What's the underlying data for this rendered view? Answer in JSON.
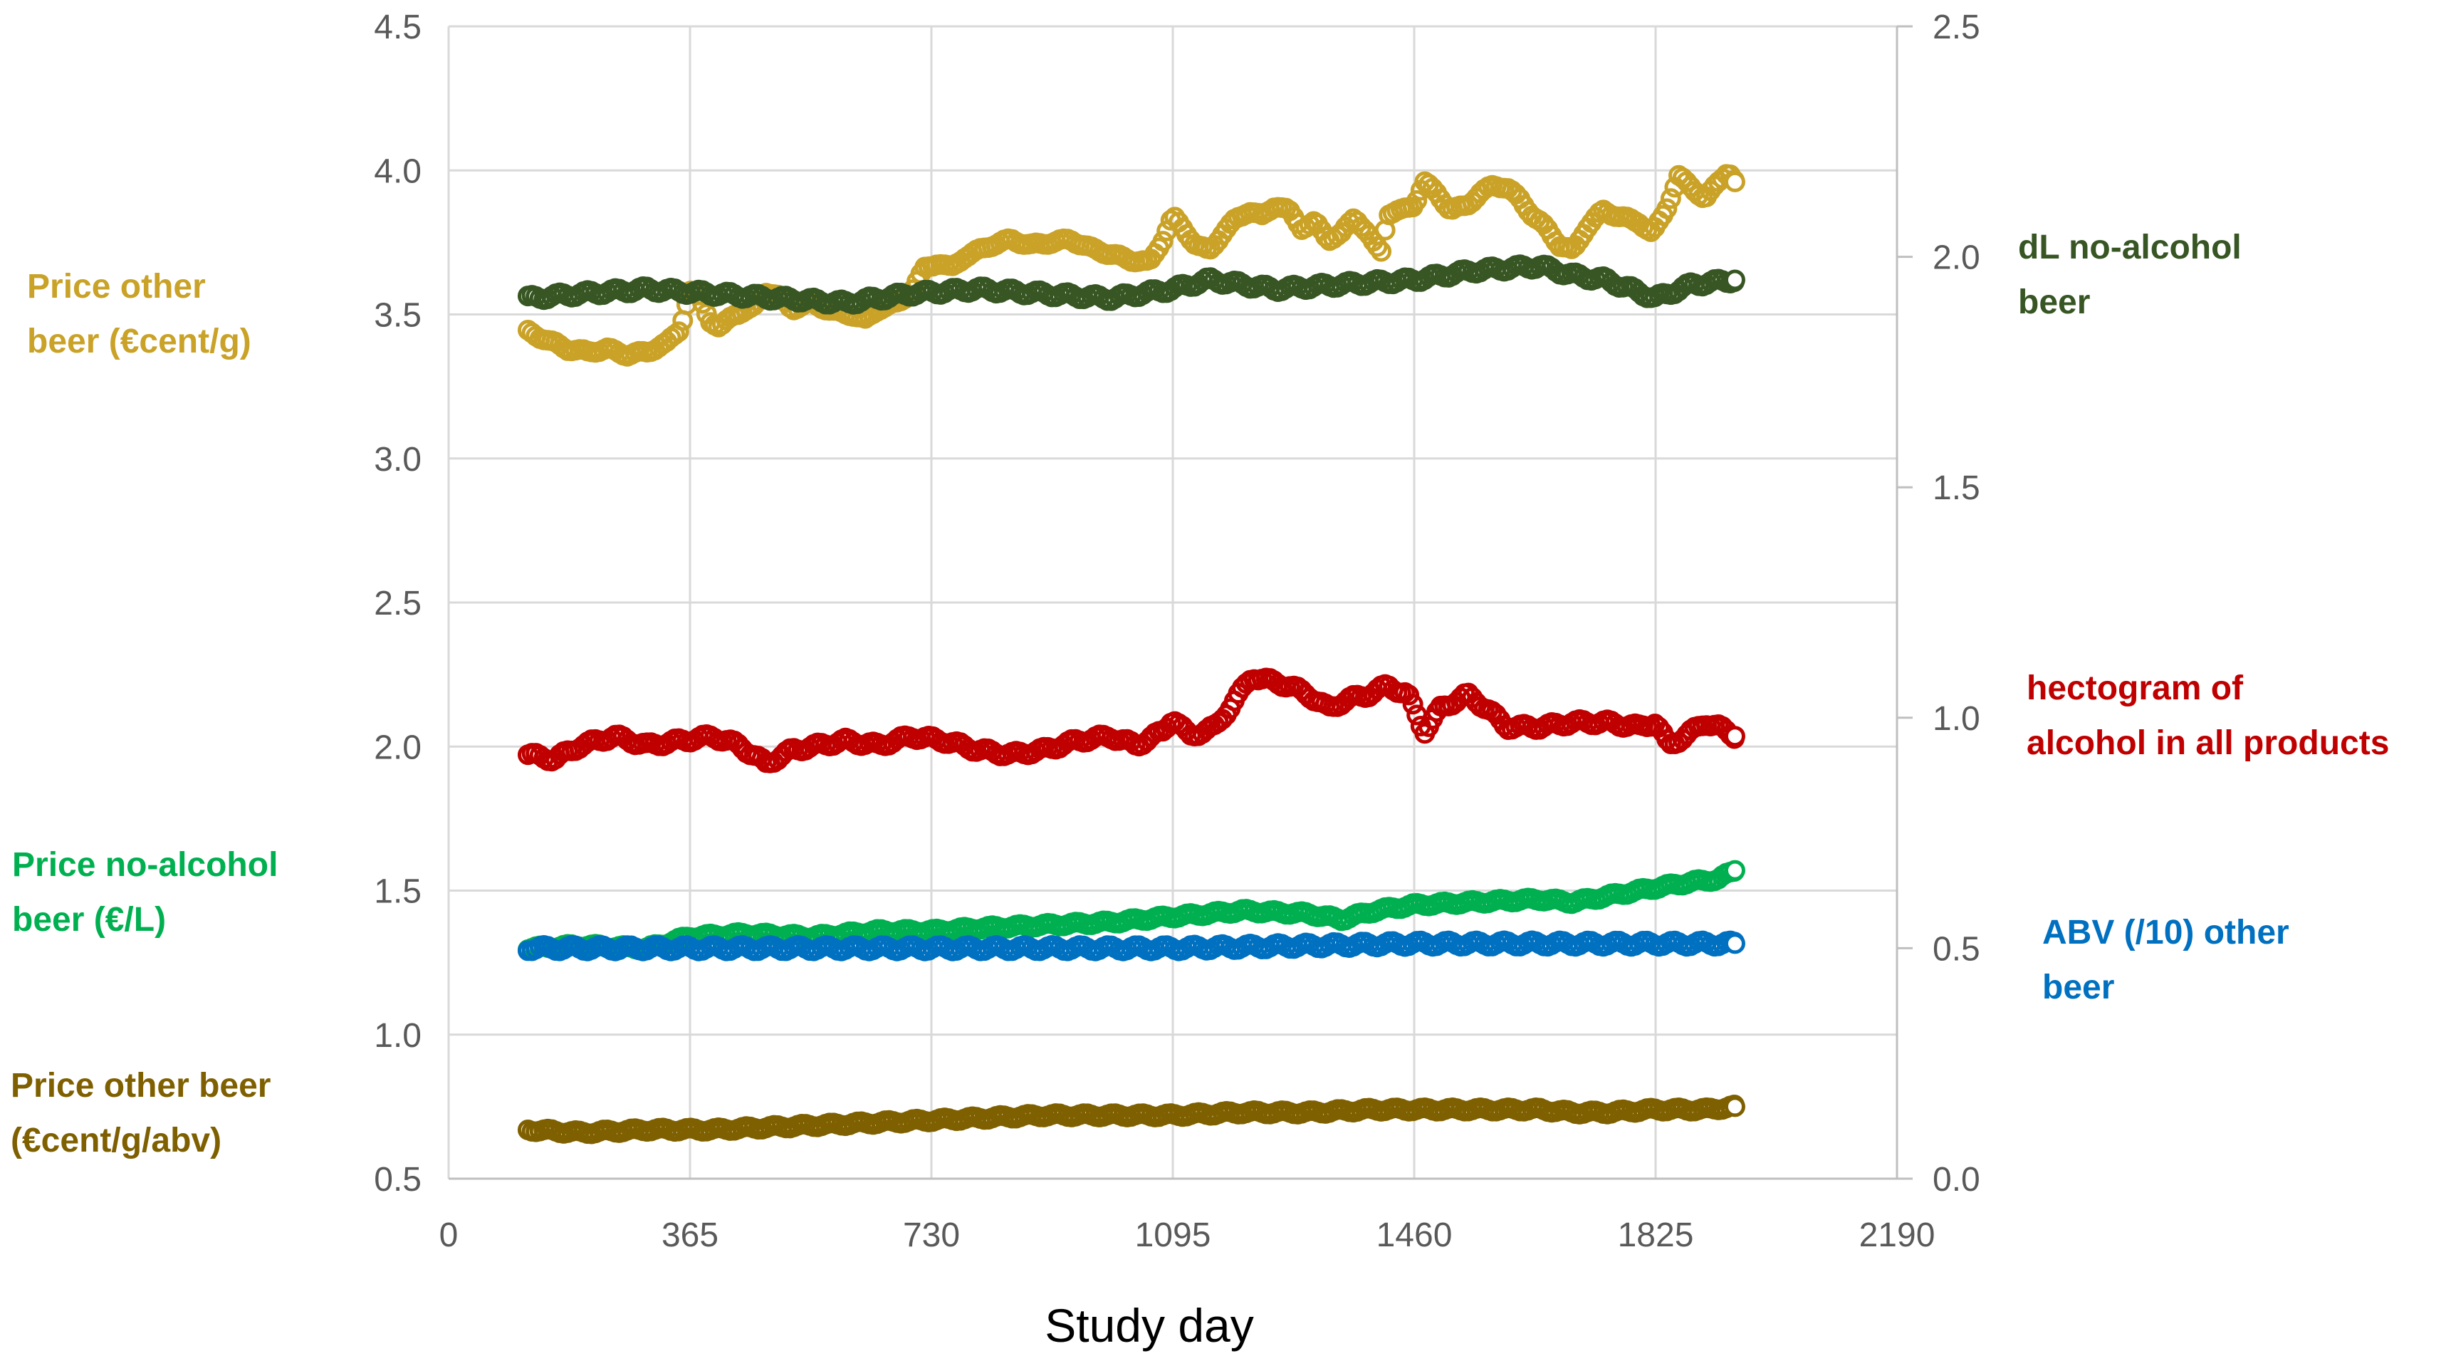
{
  "chart_data": {
    "type": "scatter",
    "title": "",
    "xlabel": "Study day",
    "ylabel_left": "",
    "ylabel_right": "",
    "x_ticks": [
      0,
      365,
      730,
      1095,
      1460,
      1825,
      2190
    ],
    "xlim": [
      0,
      2190
    ],
    "y_left_ticks": [
      "0.5",
      "1.0",
      "1.5",
      "2.0",
      "2.5",
      "3.0",
      "3.5",
      "4.0",
      "4.5"
    ],
    "ylim_left": [
      0.5,
      4.5
    ],
    "y_right_ticks": [
      "0.0",
      "0.5",
      "1.0",
      "1.5",
      "2.0",
      "2.5"
    ],
    "ylim_right": [
      0.0,
      2.5
    ],
    "grid": true,
    "series": [
      {
        "name": "Price other beer (€cent/g)",
        "label_lines": [
          "Price other",
          "beer (€cent/g)"
        ],
        "axis": "left",
        "color": "#C9A227",
        "points": [
          [
            120,
            3.44
          ],
          [
            150,
            3.41
          ],
          [
            180,
            3.38
          ],
          [
            210,
            3.37
          ],
          [
            240,
            3.38
          ],
          [
            270,
            3.36
          ],
          [
            300,
            3.37
          ],
          [
            330,
            3.4
          ],
          [
            350,
            3.45
          ],
          [
            365,
            3.58
          ],
          [
            380,
            3.56
          ],
          [
            395,
            3.48
          ],
          [
            410,
            3.45
          ],
          [
            430,
            3.5
          ],
          [
            460,
            3.52
          ],
          [
            480,
            3.58
          ],
          [
            500,
            3.56
          ],
          [
            520,
            3.52
          ],
          [
            550,
            3.54
          ],
          [
            580,
            3.51
          ],
          [
            610,
            3.5
          ],
          [
            630,
            3.48
          ],
          [
            650,
            3.52
          ],
          [
            680,
            3.54
          ],
          [
            700,
            3.58
          ],
          [
            720,
            3.66
          ],
          [
            740,
            3.68
          ],
          [
            760,
            3.66
          ],
          [
            780,
            3.7
          ],
          [
            800,
            3.72
          ],
          [
            820,
            3.74
          ],
          [
            850,
            3.76
          ],
          [
            880,
            3.74
          ],
          [
            910,
            3.75
          ],
          [
            940,
            3.76
          ],
          [
            970,
            3.73
          ],
          [
            1000,
            3.71
          ],
          [
            1030,
            3.69
          ],
          [
            1060,
            3.68
          ],
          [
            1080,
            3.76
          ],
          [
            1095,
            3.84
          ],
          [
            1110,
            3.8
          ],
          [
            1130,
            3.74
          ],
          [
            1150,
            3.72
          ],
          [
            1170,
            3.78
          ],
          [
            1190,
            3.83
          ],
          [
            1210,
            3.86
          ],
          [
            1230,
            3.84
          ],
          [
            1250,
            3.88
          ],
          [
            1270,
            3.86
          ],
          [
            1290,
            3.8
          ],
          [
            1310,
            3.82
          ],
          [
            1330,
            3.76
          ],
          [
            1350,
            3.78
          ],
          [
            1370,
            3.84
          ],
          [
            1390,
            3.78
          ],
          [
            1400,
            3.74
          ],
          [
            1410,
            3.72
          ],
          [
            1420,
            3.85
          ],
          [
            1440,
            3.86
          ],
          [
            1460,
            3.88
          ],
          [
            1475,
            3.96
          ],
          [
            1495,
            3.92
          ],
          [
            1515,
            3.86
          ],
          [
            1540,
            3.88
          ],
          [
            1560,
            3.92
          ],
          [
            1580,
            3.95
          ],
          [
            1600,
            3.94
          ],
          [
            1620,
            3.9
          ],
          [
            1640,
            3.84
          ],
          [
            1660,
            3.8
          ],
          [
            1680,
            3.74
          ],
          [
            1700,
            3.72
          ],
          [
            1720,
            3.8
          ],
          [
            1745,
            3.86
          ],
          [
            1770,
            3.84
          ],
          [
            1800,
            3.82
          ],
          [
            1820,
            3.78
          ],
          [
            1840,
            3.86
          ],
          [
            1860,
            3.98
          ],
          [
            1880,
            3.94
          ],
          [
            1900,
            3.9
          ],
          [
            1920,
            3.96
          ],
          [
            1935,
            4.0
          ],
          [
            1945,
            3.96
          ]
        ]
      },
      {
        "name": "dL no-alcohol beer",
        "label_lines": [
          "dL no-alcohol",
          "beer"
        ],
        "axis": "right",
        "color": "#375623",
        "points": [
          [
            120,
            1.91
          ],
          [
            200,
            1.92
          ],
          [
            300,
            1.93
          ],
          [
            400,
            1.92
          ],
          [
            500,
            1.91
          ],
          [
            600,
            1.9
          ],
          [
            700,
            1.92
          ],
          [
            800,
            1.93
          ],
          [
            900,
            1.92
          ],
          [
            1000,
            1.91
          ],
          [
            1095,
            1.93
          ],
          [
            1150,
            1.95
          ],
          [
            1250,
            1.93
          ],
          [
            1350,
            1.94
          ],
          [
            1460,
            1.95
          ],
          [
            1550,
            1.97
          ],
          [
            1650,
            1.98
          ],
          [
            1700,
            1.96
          ],
          [
            1750,
            1.95
          ],
          [
            1825,
            1.91
          ],
          [
            1880,
            1.94
          ],
          [
            1945,
            1.95
          ]
        ]
      },
      {
        "name": "hectogram of alcohol in all products",
        "label_lines": [
          "hectogram of",
          "alcohol in all products"
        ],
        "axis": "right",
        "color": "#C00000",
        "points": [
          [
            120,
            0.92
          ],
          [
            160,
            0.91
          ],
          [
            200,
            0.94
          ],
          [
            250,
            0.96
          ],
          [
            300,
            0.94
          ],
          [
            350,
            0.95
          ],
          [
            400,
            0.96
          ],
          [
            440,
            0.94
          ],
          [
            480,
            0.9
          ],
          [
            520,
            0.93
          ],
          [
            560,
            0.94
          ],
          [
            600,
            0.95
          ],
          [
            650,
            0.94
          ],
          [
            700,
            0.96
          ],
          [
            750,
            0.95
          ],
          [
            800,
            0.93
          ],
          [
            850,
            0.92
          ],
          [
            900,
            0.93
          ],
          [
            950,
            0.95
          ],
          [
            1000,
            0.96
          ],
          [
            1040,
            0.94
          ],
          [
            1080,
            0.97
          ],
          [
            1095,
            1.0
          ],
          [
            1120,
            0.96
          ],
          [
            1160,
            0.98
          ],
          [
            1190,
            1.04
          ],
          [
            1215,
            1.09
          ],
          [
            1240,
            1.08
          ],
          [
            1270,
            1.07
          ],
          [
            1300,
            1.05
          ],
          [
            1330,
            1.02
          ],
          [
            1360,
            1.04
          ],
          [
            1390,
            1.05
          ],
          [
            1420,
            1.07
          ],
          [
            1450,
            1.05
          ],
          [
            1475,
            0.97
          ],
          [
            1500,
            1.02
          ],
          [
            1540,
            1.05
          ],
          [
            1570,
            1.02
          ],
          [
            1600,
            0.98
          ],
          [
            1650,
            0.98
          ],
          [
            1700,
            0.99
          ],
          [
            1750,
            0.99
          ],
          [
            1800,
            0.98
          ],
          [
            1825,
            0.99
          ],
          [
            1845,
            0.94
          ],
          [
            1870,
            0.96
          ],
          [
            1900,
            0.99
          ],
          [
            1920,
            0.98
          ],
          [
            1945,
            0.96
          ]
        ]
      },
      {
        "name": "Price no-alcohol beer (€/L)",
        "label_lines": [
          "Price no-alcohol",
          "beer (€/L)"
        ],
        "axis": "left",
        "color": "#00B050",
        "points": [
          [
            120,
            1.3
          ],
          [
            200,
            1.31
          ],
          [
            300,
            1.3
          ],
          [
            365,
            1.34
          ],
          [
            450,
            1.35
          ],
          [
            550,
            1.34
          ],
          [
            650,
            1.36
          ],
          [
            730,
            1.36
          ],
          [
            800,
            1.37
          ],
          [
            900,
            1.38
          ],
          [
            1000,
            1.39
          ],
          [
            1095,
            1.41
          ],
          [
            1150,
            1.42
          ],
          [
            1200,
            1.43
          ],
          [
            1300,
            1.42
          ],
          [
            1350,
            1.4
          ],
          [
            1400,
            1.43
          ],
          [
            1460,
            1.45
          ],
          [
            1550,
            1.46
          ],
          [
            1650,
            1.47
          ],
          [
            1700,
            1.46
          ],
          [
            1750,
            1.48
          ],
          [
            1825,
            1.51
          ],
          [
            1880,
            1.53
          ],
          [
            1920,
            1.54
          ],
          [
            1945,
            1.57
          ]
        ]
      },
      {
        "name": "ABV (/10) other beer",
        "label_lines": [
          "ABV (/10) other",
          "beer"
        ],
        "axis": "right",
        "color": "#0070C0",
        "points": [
          [
            120,
            0.5
          ],
          [
            365,
            0.5
          ],
          [
            730,
            0.5
          ],
          [
            1095,
            0.5
          ],
          [
            1460,
            0.51
          ],
          [
            1825,
            0.51
          ],
          [
            1945,
            0.51
          ]
        ]
      },
      {
        "name": "Price other beer (€cent/g/abv)",
        "label_lines": [
          "Price other beer",
          "(€cent/g/abv)"
        ],
        "axis": "left",
        "color": "#7F6000",
        "points": [
          [
            120,
            0.67
          ],
          [
            200,
            0.66
          ],
          [
            300,
            0.67
          ],
          [
            400,
            0.67
          ],
          [
            500,
            0.68
          ],
          [
            600,
            0.69
          ],
          [
            700,
            0.7
          ],
          [
            800,
            0.71
          ],
          [
            900,
            0.72
          ],
          [
            1000,
            0.72
          ],
          [
            1095,
            0.72
          ],
          [
            1200,
            0.73
          ],
          [
            1300,
            0.73
          ],
          [
            1400,
            0.74
          ],
          [
            1460,
            0.74
          ],
          [
            1550,
            0.74
          ],
          [
            1650,
            0.74
          ],
          [
            1700,
            0.73
          ],
          [
            1750,
            0.73
          ],
          [
            1825,
            0.74
          ],
          [
            1900,
            0.74
          ],
          [
            1945,
            0.75
          ]
        ]
      }
    ]
  }
}
